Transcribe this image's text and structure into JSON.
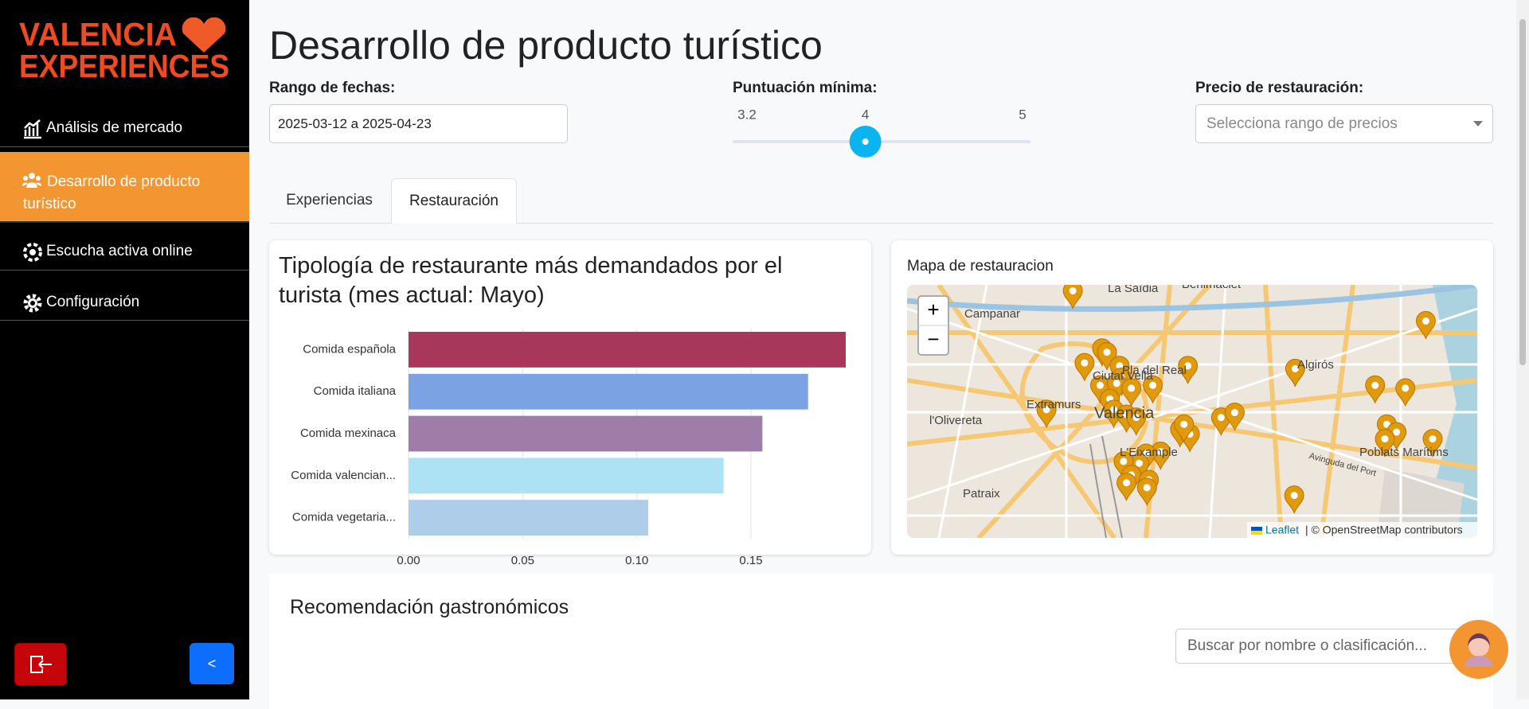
{
  "sidebar": {
    "logo": [
      "VALENCIA",
      "EXPERIENCES"
    ],
    "nav": [
      "Análisis de mercado",
      "Desarrollo de producto turístico",
      "Escucha activa online",
      "Configuración"
    ],
    "collapse_button": "<"
  },
  "header": {
    "title": "Desarrollo de producto turístico"
  },
  "filters": {
    "date_label": "Rango de fechas:",
    "date_value": "2025-03-12 a 2025-04-23",
    "score_label": "Puntuación mínima:",
    "score_min": 3.2,
    "score_value": 4,
    "score_max": 5,
    "price_label": "Precio de restauración:",
    "price_placeholder": "Selecciona rango de precios"
  },
  "tabs": [
    "Experiencias",
    "Restauración"
  ],
  "chart_data": {
    "type": "hbar",
    "title": "Tipología de restaurante más demandados por el turista (mes actual: Mayo)",
    "categories": [
      "Comida española",
      "Comida italiana",
      "Comida mexinaca",
      "Comida valencian...",
      "Comida vegetaria..."
    ],
    "values": [
      0.1915,
      0.175,
      0.155,
      0.138,
      0.105
    ],
    "colors": [
      "#a8385a",
      "#7ba3e3",
      "#a07ca8",
      "#ade2f5",
      "#aecde9"
    ],
    "xlim": [
      0,
      0.1915
    ],
    "xticks": [
      {
        "value": 0,
        "label": "0.00"
      },
      0.05,
      {
        "value": 0.1,
        "label": "0.10"
      },
      0.15
    ],
    "grid": true
  },
  "map": {
    "title": "Mapa de restauracion",
    "zoom_in": "+",
    "zoom_out": "−",
    "labels": [
      "La Saïdia",
      "Benimaclet",
      "Campanar",
      "Ciutat Vella",
      "Pla del Real",
      "Algirós",
      "Extramurs",
      "l'Olivereta",
      "Valencia",
      "L'Eixample",
      "Poblats Marítims",
      "Patraix",
      "Avinguda del Port"
    ],
    "attribution_link": "Leaflet",
    "attribution_text": "| © OpenStreetMap contributors"
  },
  "recommendations": {
    "title": "Recomendación gastronómicos",
    "search_placeholder": "Buscar por nombre o clasificación..."
  }
}
